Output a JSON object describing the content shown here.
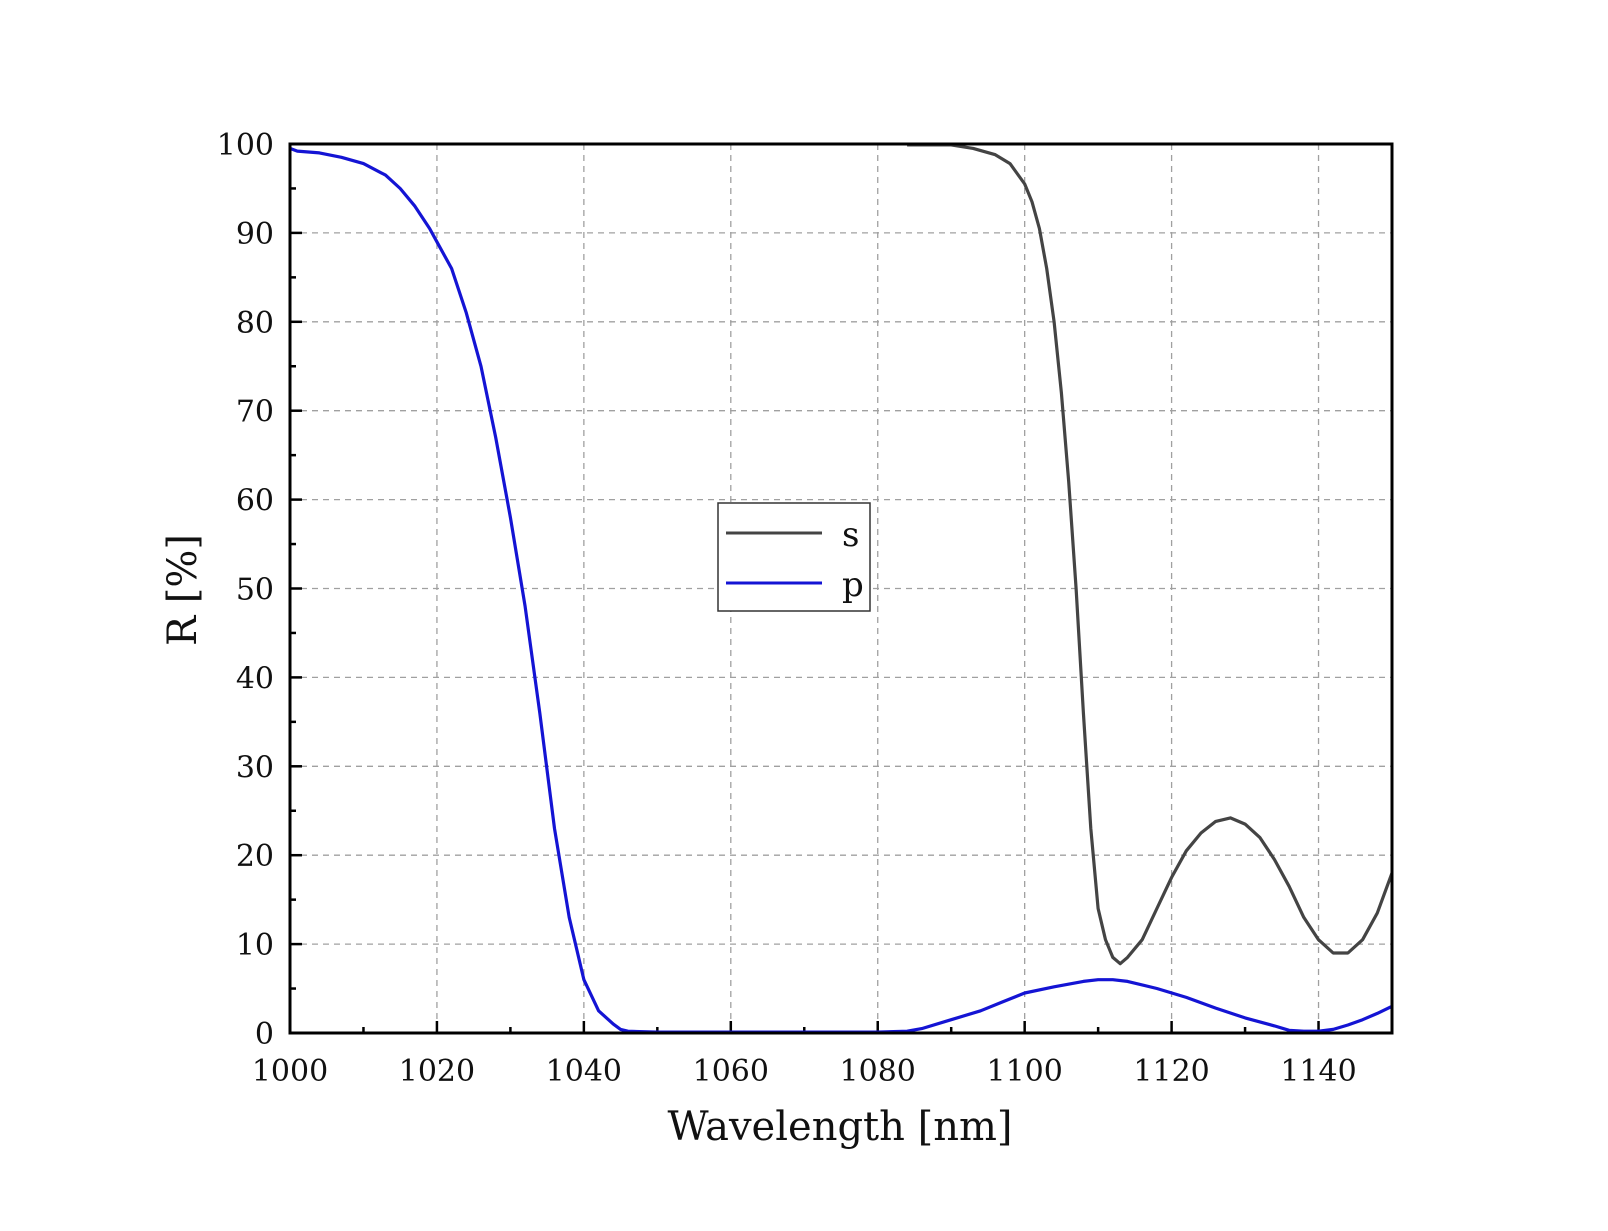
{
  "chart_data": {
    "type": "line",
    "xlabel": "Wavelength [nm]",
    "ylabel": "R [%]",
    "xlim": [
      1000,
      1150
    ],
    "ylim": [
      0,
      100
    ],
    "x_major_ticks": [
      1000,
      1020,
      1040,
      1060,
      1080,
      1100,
      1120,
      1140
    ],
    "y_major_ticks": [
      0,
      10,
      20,
      30,
      40,
      50,
      60,
      70,
      80,
      90,
      100
    ],
    "x_tick_labels": [
      "1000",
      "1020",
      "1040",
      "1060",
      "1080",
      "1100",
      "1120",
      "1140"
    ],
    "y_tick_labels": [
      "0",
      "10",
      "20",
      "30",
      "40",
      "50",
      "60",
      "70",
      "80",
      "90",
      "100"
    ],
    "grid": true,
    "legend_position": "center",
    "series": [
      {
        "name": "s",
        "color": "#444444",
        "x": [
          1084,
          1090,
          1093,
          1096,
          1098,
          1100,
          1101,
          1102,
          1103,
          1104,
          1105,
          1106,
          1107,
          1108,
          1109,
          1110,
          1111,
          1112,
          1113,
          1114,
          1116,
          1118,
          1120,
          1122,
          1124,
          1126,
          1128,
          1130,
          1132,
          1134,
          1136,
          1138,
          1140,
          1142,
          1144,
          1146,
          1148,
          1150
        ],
        "y": [
          99.9,
          99.9,
          99.5,
          98.8,
          97.8,
          95.5,
          93.5,
          90.5,
          86,
          80,
          72,
          62,
          50,
          36,
          23,
          14,
          10.5,
          8.5,
          7.8,
          8.5,
          10.5,
          14,
          17.5,
          20.5,
          22.5,
          23.8,
          24.2,
          23.5,
          22,
          19.5,
          16.5,
          13,
          10.5,
          9,
          9,
          10.5,
          13.5,
          18
        ]
      },
      {
        "name": "p",
        "color": "#1414d4",
        "x": [
          1000,
          1001,
          1004,
          1007,
          1010,
          1013,
          1015,
          1017,
          1019,
          1020,
          1022,
          1024,
          1026,
          1028,
          1030,
          1032,
          1034,
          1036,
          1038,
          1040,
          1042,
          1044,
          1045,
          1046,
          1050,
          1060,
          1070,
          1080,
          1084,
          1086,
          1090,
          1094,
          1097,
          1100,
          1104,
          1108,
          1110,
          1112,
          1114,
          1118,
          1122,
          1126,
          1130,
          1134,
          1136,
          1138,
          1140,
          1142,
          1144,
          1146,
          1148,
          1150
        ],
        "y": [
          99.5,
          99.2,
          99,
          98.5,
          97.8,
          96.5,
          95,
          93,
          90.5,
          89,
          86,
          81,
          75,
          67,
          58,
          48,
          36,
          23,
          13,
          6,
          2.5,
          1,
          0.4,
          0.2,
          0.1,
          0.1,
          0.1,
          0.1,
          0.2,
          0.5,
          1.5,
          2.5,
          3.5,
          4.5,
          5.2,
          5.8,
          6,
          6,
          5.8,
          5,
          4,
          2.8,
          1.7,
          0.8,
          0.3,
          0.2,
          0.2,
          0.4,
          0.9,
          1.5,
          2.2,
          3
        ]
      }
    ]
  }
}
